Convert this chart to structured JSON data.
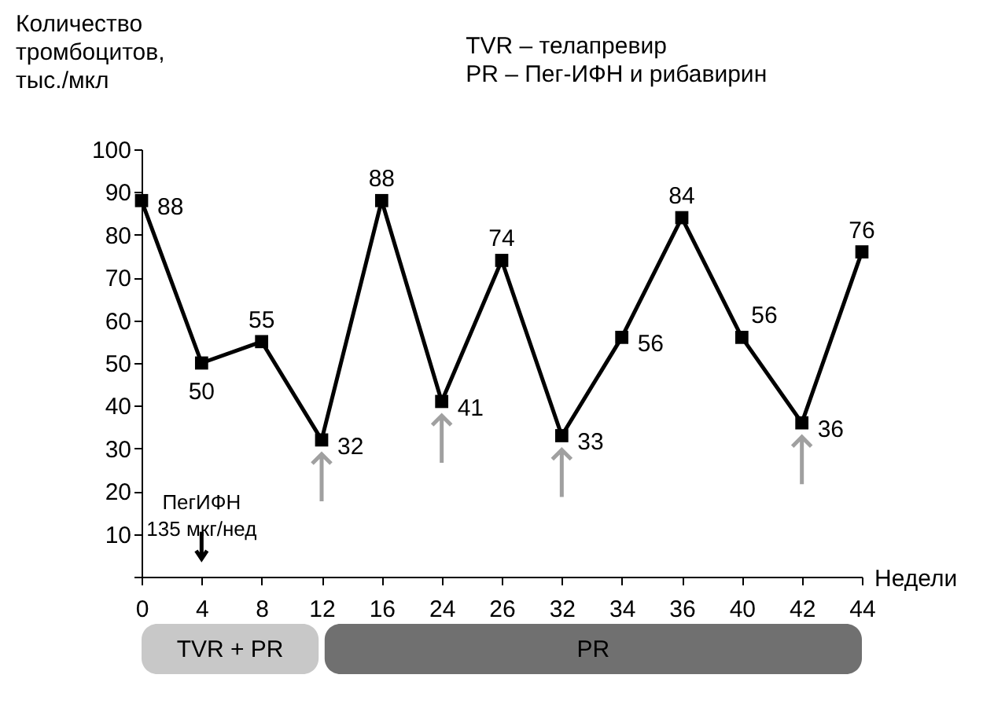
{
  "chart_data": {
    "type": "line",
    "ylabel": "Количество\nтромбоцитов,\nтыс./мкл",
    "xlabel": "Недели",
    "categories": [
      "0",
      "4",
      "8",
      "12",
      "16",
      "24",
      "26",
      "32",
      "34",
      "36",
      "40",
      "42",
      "44"
    ],
    "series": [
      {
        "color": "#000000",
        "values": [
          88,
          50,
          55,
          32,
          88,
          41,
          74,
          33,
          56,
          84,
          56,
          36,
          76
        ]
      }
    ],
    "ylim": [
      0,
      100
    ],
    "yticks": [
      {
        "value": 0,
        "label": null
      },
      10,
      20,
      30,
      40,
      50,
      60,
      70,
      80,
      90,
      100
    ],
    "data_labels": true,
    "marker": "square",
    "line_style": "solid",
    "grid": false,
    "annotations": [
      "TVR  – телапревир",
      "PR    – Пег-ИФН и рибавирин",
      "ПегИФН\n135 мкг/нед",
      "TVR + PR",
      "PR"
    ]
  }
}
